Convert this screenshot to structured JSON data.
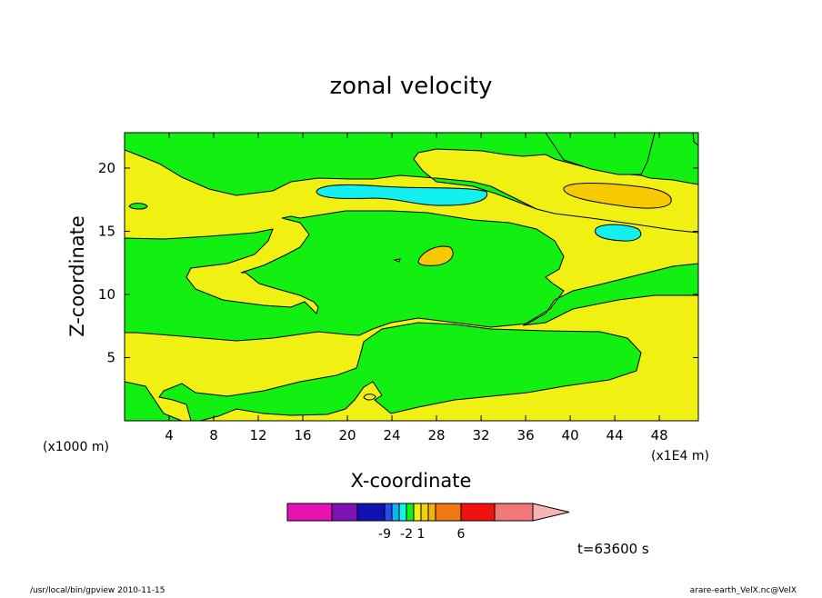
{
  "chart_data": {
    "type": "heatmap",
    "title": "zonal velocity",
    "xlabel": "X-coordinate",
    "ylabel": "Z-coordinate",
    "x_unit_left": "(x1000 m)",
    "x_unit_right": "(x1E4 m)",
    "xlim": [
      0,
      51.5
    ],
    "ylim": [
      0,
      22.8
    ],
    "x_ticks": [
      4,
      8,
      12,
      16,
      20,
      24,
      28,
      32,
      36,
      40,
      44,
      48
    ],
    "y_ticks": [
      5,
      10,
      15,
      20
    ],
    "time_label": "t=63600 s",
    "colorbar": {
      "levels": [
        {
          "color": "#e612b4"
        },
        {
          "color": "#7d12b4"
        },
        {
          "color": "#1212b4"
        },
        {
          "color": "#2a4bf0"
        },
        {
          "color": "#12b4f0"
        },
        {
          "color": "#12f0f0"
        },
        {
          "color": "#12f012"
        },
        {
          "color": "#f0f012"
        },
        {
          "color": "#f0d212"
        },
        {
          "color": "#f0b412"
        },
        {
          "color": "#f07812"
        },
        {
          "color": "#f01212"
        },
        {
          "color": "#f07878"
        },
        {
          "color": "#f8b4b4"
        }
      ],
      "labels": [
        {
          "value": "-9",
          "at": 2
        },
        {
          "value": "-2",
          "at": 5
        },
        {
          "value": "1",
          "at": 7
        },
        {
          "value": "6",
          "at": 10
        }
      ]
    },
    "colors": {
      "green": "#12f012",
      "yellow": "#f0f012",
      "cyan": "#12f0f0",
      "orange": "#f8c800"
    }
  },
  "footer": {
    "left": "/usr/local/bin/gpview   2010-11-15",
    "right": "arare-earth_VelX.nc@VelX"
  }
}
